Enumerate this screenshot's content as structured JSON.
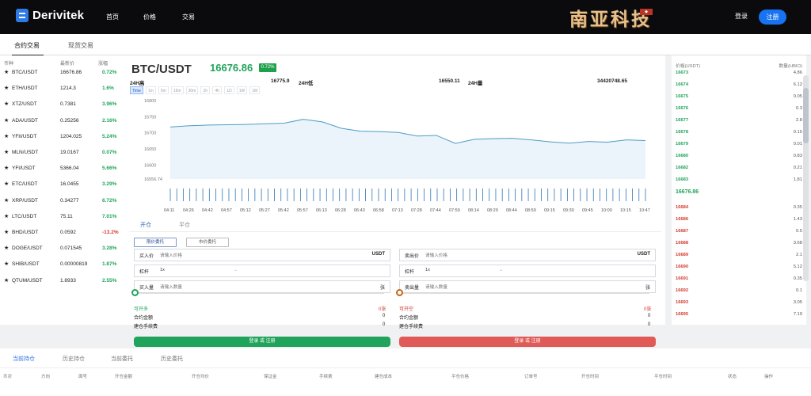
{
  "header": {
    "brand": "Derivitek",
    "nav": [
      "首页",
      "价格",
      "交易"
    ],
    "artwork": "南亚科技",
    "login": "登录",
    "register": "注册"
  },
  "trade_tabs": [
    "合约交易",
    "现货交易"
  ],
  "market": {
    "headers": [
      "币种",
      "最新价",
      "涨幅"
    ],
    "items": [
      {
        "symbol": "BTC/USDT",
        "price": "16676.86",
        "change": "0.72%",
        "dir": "up"
      },
      {
        "symbol": "ETH/USDT",
        "price": "1214.3",
        "change": "1.6%",
        "dir": "up"
      },
      {
        "symbol": "XTZ/USDT",
        "price": "0.7381",
        "change": "3.96%",
        "dir": "up"
      },
      {
        "symbol": "ADA/USDT",
        "price": "0.25256",
        "change": "2.16%",
        "dir": "up"
      },
      {
        "symbol": "YFII/USDT",
        "price": "1204.025",
        "change": "5.24%",
        "dir": "up"
      },
      {
        "symbol": "MLN/USDT",
        "price": "19.0167",
        "change": "0.07%",
        "dir": "up"
      },
      {
        "symbol": "YFI/USDT",
        "price": "5366.04",
        "change": "5.66%",
        "dir": "up"
      },
      {
        "symbol": "ETC/USDT",
        "price": "16.0455",
        "change": "3.29%",
        "dir": "up"
      },
      {
        "symbol": "XRP/USDT",
        "price": "0.34277",
        "change": "6.72%",
        "dir": "up"
      },
      {
        "symbol": "LTC/USDT",
        "price": "75.11",
        "change": "7.01%",
        "dir": "up"
      },
      {
        "symbol": "BHD/USDT",
        "price": "0.0592",
        "change": "-13.2%",
        "dir": "down"
      },
      {
        "symbol": "DOGE/USDT",
        "price": "0.071545",
        "change": "3.28%",
        "dir": "up"
      },
      {
        "symbol": "SHIB/USDT",
        "price": "0.00000819",
        "change": "1.87%",
        "dir": "up"
      },
      {
        "symbol": "QTUM/USDT",
        "price": "1.8933",
        "change": "2.55%",
        "dir": "up"
      }
    ]
  },
  "chart": {
    "pair": "BTC/USDT",
    "last": "16676.86",
    "change": "0.72%",
    "stats": [
      "24H高",
      "16775.9",
      "24H低",
      "16550.11",
      "24H量",
      "34420748.65"
    ],
    "intervals": [
      "Time",
      "1m",
      "5m",
      "15m",
      "30m",
      "1h",
      "4h",
      "1D",
      "1W",
      "1M"
    ]
  },
  "chart_data": {
    "type": "area",
    "x": [
      "04:11",
      "04:26",
      "04:42",
      "04:57",
      "05:12",
      "05:27",
      "05:42",
      "05:57",
      "06:13",
      "06:28",
      "06:43",
      "06:58",
      "07:13",
      "07:28",
      "07:44",
      "07:59",
      "08:14",
      "08:29",
      "08:44",
      "08:59",
      "09:15",
      "09:30",
      "09:45",
      "10:00",
      "10:15",
      "10:47"
    ],
    "series": [
      {
        "values": [
          16718,
          16722,
          16724,
          16725,
          16726,
          16728,
          16730,
          16742,
          16734,
          16714,
          16705,
          16704,
          16701,
          16690,
          16692,
          16667,
          16680,
          16682,
          16683,
          16678,
          16672,
          16668,
          16673,
          16671,
          16678,
          16676
        ]
      }
    ],
    "yticks": [
      16556.74,
      16600,
      16650,
      16700,
      16750,
      16800
    ],
    "ylim": [
      16556.74,
      16800
    ],
    "grid": false,
    "legend": ""
  },
  "form": {
    "tabs": [
      "开仓",
      "平仓"
    ],
    "order_types": [
      "限价委托",
      "市价委托"
    ],
    "buy": {
      "price_label": "买入价",
      "price_placeholder": "请输入价格",
      "unit": "USDT",
      "leverage_label": "杠杆",
      "leverage": "1x",
      "amount_label": "买入量",
      "amount_placeholder": "请输入数量",
      "amount_unit": "张",
      "available": "可开多",
      "available_value": "0张",
      "margin_label": "合约金额",
      "margin": "0",
      "fee_label": "建仓手续费",
      "fee": "0",
      "button": "登录 或 注册"
    },
    "sell": {
      "price_label": "卖出价",
      "price_placeholder": "请输入价格",
      "unit": "USDT",
      "leverage_label": "杠杆",
      "leverage": "1x",
      "amount_label": "卖出量",
      "amount_placeholder": "请输入数量",
      "amount_unit": "张",
      "available": "可开空",
      "available_value": "0张",
      "margin_label": "合约金额",
      "margin": "0",
      "fee_label": "建仓手续费",
      "fee": "0",
      "button": "登录 或 注册"
    }
  },
  "orderbook": {
    "headers": [
      "价格(USDT)",
      "数量(HBIO)"
    ],
    "bids": [
      {
        "price": "16673",
        "qty": "4.86"
      },
      {
        "price": "16674",
        "qty": "6.12"
      },
      {
        "price": "16675",
        "qty": "0.05"
      },
      {
        "price": "16676",
        "qty": "0.3"
      },
      {
        "price": "16677",
        "qty": "2.8"
      },
      {
        "price": "16678",
        "qty": "0.15"
      },
      {
        "price": "16679",
        "qty": "0.01"
      },
      {
        "price": "16680",
        "qty": "0.83"
      },
      {
        "price": "16682",
        "qty": "0.21"
      },
      {
        "price": "16683",
        "qty": "1.81"
      }
    ],
    "last": "16676.86",
    "asks": [
      {
        "price": "16684",
        "qty": "0.35"
      },
      {
        "price": "16686",
        "qty": "1.43"
      },
      {
        "price": "16687",
        "qty": "0.5"
      },
      {
        "price": "16688",
        "qty": "3.68"
      },
      {
        "price": "16689",
        "qty": "2.1"
      },
      {
        "price": "16690",
        "qty": "5.12"
      },
      {
        "price": "16691",
        "qty": "0.35"
      },
      {
        "price": "16692",
        "qty": "0.1"
      },
      {
        "price": "16693",
        "qty": "3.05"
      },
      {
        "price": "16695",
        "qty": "7.19"
      }
    ]
  },
  "positions": {
    "tabs": [
      "当前持仓",
      "历史持仓",
      "当前委托",
      "历史委托"
    ],
    "columns": [
      "币对",
      "方向",
      "面号",
      "开仓金额",
      "开仓均价",
      "保证金",
      "手续费",
      "建仓成本",
      "平仓价格",
      "订单号",
      "开仓时间",
      "平仓时间",
      "状态",
      "操作"
    ]
  },
  "colors": {
    "green": "#20a35a",
    "red": "#d43a2f",
    "blue": "#1773f2",
    "line": "#4f9bc6"
  }
}
